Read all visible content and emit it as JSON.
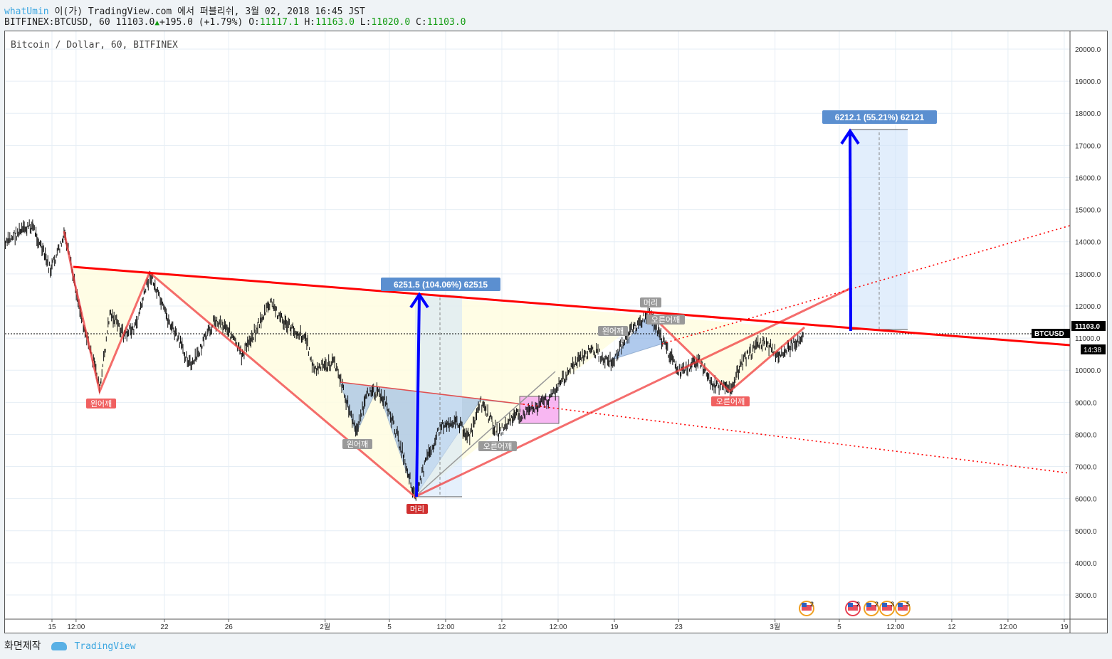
{
  "header": {
    "user": "whatUmin",
    "publish_text": "이(가) TradingView.com 에서 퍼블리쉬, 3월 02, 2018 16:45 JST",
    "symbol": "BITFINEX:BTCUSD, 60",
    "last": "11103.0",
    "change": "+195.0 (+1.79%)",
    "o_label": "O:",
    "o": "11117.1",
    "h_label": "H:",
    "h": "11163.0",
    "l_label": "L:",
    "l": "11020.0",
    "c_label": "C:",
    "c": "11103.0",
    "up_color": "#129c12"
  },
  "chart_title": "Bitcoin / Dollar, 60, BITFINEX",
  "price_tag": {
    "symbol": "BTCUSD",
    "price": "11103.0",
    "countdown": "14:38"
  },
  "labels": {
    "left_shoulder": "왼어깨",
    "head": "머리",
    "right_shoulder": "오른어깨"
  },
  "measures": [
    {
      "text": "6251.5 (104.06%) 62515"
    },
    {
      "text": "6212.1 (55.21%) 62121"
    }
  ],
  "events": [
    "2",
    "2",
    "2",
    "3",
    "5"
  ],
  "footer": {
    "made_with": "화면제작",
    "brand": "TradingView"
  },
  "chart_data": {
    "type": "line",
    "title": "Bitcoin / Dollar, 60, BITFINEX",
    "ylim": [
      2500,
      20800
    ],
    "y_ticks": [
      "20000.0",
      "19000.0",
      "18000.0",
      "17000.0",
      "16000.0",
      "15000.0",
      "14000.0",
      "13000.0",
      "12000.0",
      "11000.0",
      "10000.0",
      "9000.0",
      "8000.0",
      "7000.0",
      "6000.0",
      "5000.0",
      "4000.0",
      "3000.0"
    ],
    "x_ticks": [
      {
        "day": 15,
        "label": "15"
      },
      {
        "day": 16.5,
        "label": "12:00"
      },
      {
        "day": 22,
        "label": "22"
      },
      {
        "day": 26,
        "label": "26"
      },
      {
        "day": 32,
        "label": "2월"
      },
      {
        "day": 36,
        "label": "5"
      },
      {
        "day": 39.5,
        "label": "12:00"
      },
      {
        "day": 43,
        "label": "12"
      },
      {
        "day": 46.5,
        "label": "12:00"
      },
      {
        "day": 50,
        "label": "19"
      },
      {
        "day": 54,
        "label": "23"
      },
      {
        "day": 60,
        "label": "3월"
      },
      {
        "day": 64,
        "label": "5"
      },
      {
        "day": 67.5,
        "label": "12:00"
      },
      {
        "day": 71,
        "label": "12"
      },
      {
        "day": 74.5,
        "label": "12:00"
      },
      {
        "day": 78,
        "label": "19"
      }
    ],
    "price_path": [
      [
        12.1,
        13900
      ],
      [
        12.6,
        14200
      ],
      [
        13.8,
        14500
      ],
      [
        14.9,
        13100
      ],
      [
        15.8,
        14200
      ],
      [
        16.4,
        12700
      ],
      [
        16.9,
        11550
      ],
      [
        18.0,
        9450
      ],
      [
        18.6,
        11800
      ],
      [
        19.5,
        11100
      ],
      [
        20.2,
        11350
      ],
      [
        21.1,
        13000
      ],
      [
        22.0,
        11800
      ],
      [
        23.1,
        10700
      ],
      [
        23.7,
        10100
      ],
      [
        25.1,
        11550
      ],
      [
        25.9,
        11350
      ],
      [
        26.8,
        10450
      ],
      [
        28.6,
        12100
      ],
      [
        29.5,
        11450
      ],
      [
        30.8,
        11000
      ],
      [
        31.3,
        10000
      ],
      [
        32.6,
        10250
      ],
      [
        33.9,
        8100
      ],
      [
        34.8,
        9450
      ],
      [
        35.7,
        9100
      ],
      [
        36.6,
        7800
      ],
      [
        37.6,
        6050
      ],
      [
        38.4,
        7350
      ],
      [
        39.2,
        8250
      ],
      [
        40.1,
        8450
      ],
      [
        41.0,
        7900
      ],
      [
        41.7,
        9000
      ],
      [
        42.8,
        8000
      ],
      [
        43.7,
        8550
      ],
      [
        44.6,
        8700
      ],
      [
        45.9,
        9100
      ],
      [
        47.2,
        10000
      ],
      [
        48.5,
        10650
      ],
      [
        49.9,
        10250
      ],
      [
        50.8,
        11100
      ],
      [
        52.2,
        11800
      ],
      [
        53.0,
        10900
      ],
      [
        54.1,
        9900
      ],
      [
        55.2,
        10350
      ],
      [
        56.1,
        9550
      ],
      [
        57.2,
        9400
      ],
      [
        58.1,
        10350
      ],
      [
        59.2,
        10900
      ],
      [
        60.3,
        10450
      ],
      [
        61.8,
        11103
      ]
    ],
    "last_price": 11103.0
  }
}
